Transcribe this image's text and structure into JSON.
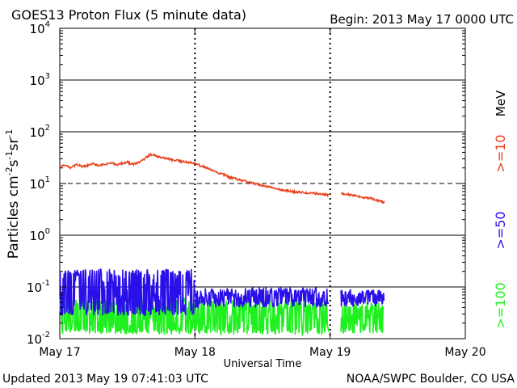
{
  "header": {
    "title": "GOES13 Proton Flux (5 minute data)",
    "begin": "Begin: 2013 May 17 0000 UTC"
  },
  "footer": {
    "updated": "Updated 2013 May 19 07:41:03 UTC",
    "credit": "NOAA/SWPC Boulder, CO USA"
  },
  "colors": {
    "ge10": "#e8401c",
    "ge50": "#2a10e8",
    "ge100": "#20f020",
    "frame": "#000000"
  },
  "chart_data": {
    "type": "line",
    "title": "GOES13 Proton Flux (5 minute data)",
    "xlabel": "Universal Time",
    "ylabel": "Particles cm⁻²s⁻¹sr⁻¹",
    "ylabel_parts": {
      "main": "Particles cm",
      "exp1": "-2",
      "s": "s",
      "exp2": "-1",
      "sr": "sr",
      "exp3": "-1"
    },
    "yscale": "log",
    "ylim_exp": [
      -2,
      4
    ],
    "xlim_days": [
      0,
      3
    ],
    "yticks": [
      {
        "base": "10",
        "exp": "-2",
        "v": -2
      },
      {
        "base": "10",
        "exp": "-1",
        "v": -1
      },
      {
        "base": "10",
        "exp": "0",
        "v": 0
      },
      {
        "base": "10",
        "exp": "1",
        "v": 1
      },
      {
        "base": "10",
        "exp": "2",
        "v": 2
      },
      {
        "base": "10",
        "exp": "3",
        "v": 3
      },
      {
        "base": "10",
        "exp": "4",
        "v": 4
      }
    ],
    "xticks": [
      {
        "label": "May 17",
        "day": 0
      },
      {
        "label": "May 18",
        "day": 1
      },
      {
        "label": "May 19",
        "day": 2
      },
      {
        "label": "May 20",
        "day": 3
      }
    ],
    "threshold_exp": 1,
    "legend_unit": "MeV",
    "series": [
      {
        "name": ">=10",
        "color": "#e8401c",
        "kind": "line",
        "points": [
          [
            0.0,
            1.33
          ],
          [
            0.04,
            1.35
          ],
          [
            0.08,
            1.31
          ],
          [
            0.13,
            1.37
          ],
          [
            0.17,
            1.32
          ],
          [
            0.21,
            1.35
          ],
          [
            0.25,
            1.38
          ],
          [
            0.29,
            1.35
          ],
          [
            0.33,
            1.36
          ],
          [
            0.38,
            1.4
          ],
          [
            0.42,
            1.36
          ],
          [
            0.46,
            1.39
          ],
          [
            0.5,
            1.41
          ],
          [
            0.54,
            1.37
          ],
          [
            0.58,
            1.4
          ],
          [
            0.63,
            1.48
          ],
          [
            0.67,
            1.56
          ],
          [
            0.71,
            1.54
          ],
          [
            0.75,
            1.5
          ],
          [
            0.79,
            1.49
          ],
          [
            0.83,
            1.45
          ],
          [
            0.88,
            1.44
          ],
          [
            0.92,
            1.42
          ],
          [
            0.96,
            1.41
          ],
          [
            1.0,
            1.4
          ],
          [
            1.04,
            1.34
          ],
          [
            1.08,
            1.31
          ],
          [
            1.13,
            1.25
          ],
          [
            1.17,
            1.2
          ],
          [
            1.21,
            1.18
          ],
          [
            1.25,
            1.12
          ],
          [
            1.29,
            1.1
          ],
          [
            1.33,
            1.07
          ],
          [
            1.38,
            1.04
          ],
          [
            1.42,
            1.01
          ],
          [
            1.46,
            0.98
          ],
          [
            1.5,
            0.96
          ],
          [
            1.54,
            0.94
          ],
          [
            1.58,
            0.91
          ],
          [
            1.63,
            0.88
          ],
          [
            1.67,
            0.86
          ],
          [
            1.71,
            0.85
          ],
          [
            1.75,
            0.83
          ],
          [
            1.79,
            0.83
          ],
          [
            1.83,
            0.81
          ],
          [
            1.88,
            0.81
          ],
          [
            1.92,
            0.8
          ],
          [
            1.96,
            0.79
          ],
          [
            1.99,
            0.78
          ],
          null,
          [
            2.08,
            0.8
          ],
          [
            2.13,
            0.79
          ],
          [
            2.17,
            0.77
          ],
          [
            2.21,
            0.75
          ],
          [
            2.25,
            0.73
          ],
          [
            2.29,
            0.72
          ],
          [
            2.33,
            0.69
          ],
          [
            2.38,
            0.65
          ],
          [
            2.4,
            0.62
          ]
        ]
      },
      {
        "name": ">=50",
        "color": "#2a10e8",
        "kind": "noise",
        "segments": [
          {
            "start": 0.0,
            "end": 1.0,
            "low": -1.55,
            "high": -0.65
          },
          {
            "start": 1.0,
            "end": 1.99,
            "low": -1.4,
            "high": -1.0
          },
          {
            "start": 2.08,
            "end": 2.4,
            "low": -1.38,
            "high": -1.05
          }
        ]
      },
      {
        "name": ">=100",
        "color": "#20f020",
        "kind": "noise",
        "segments": [
          {
            "start": 0.0,
            "end": 1.0,
            "low": -1.92,
            "high": -1.22
          },
          {
            "start": 1.0,
            "end": 1.99,
            "low": -1.92,
            "high": -1.25
          },
          {
            "start": 2.08,
            "end": 2.4,
            "low": -1.9,
            "high": -1.3
          }
        ]
      }
    ]
  }
}
